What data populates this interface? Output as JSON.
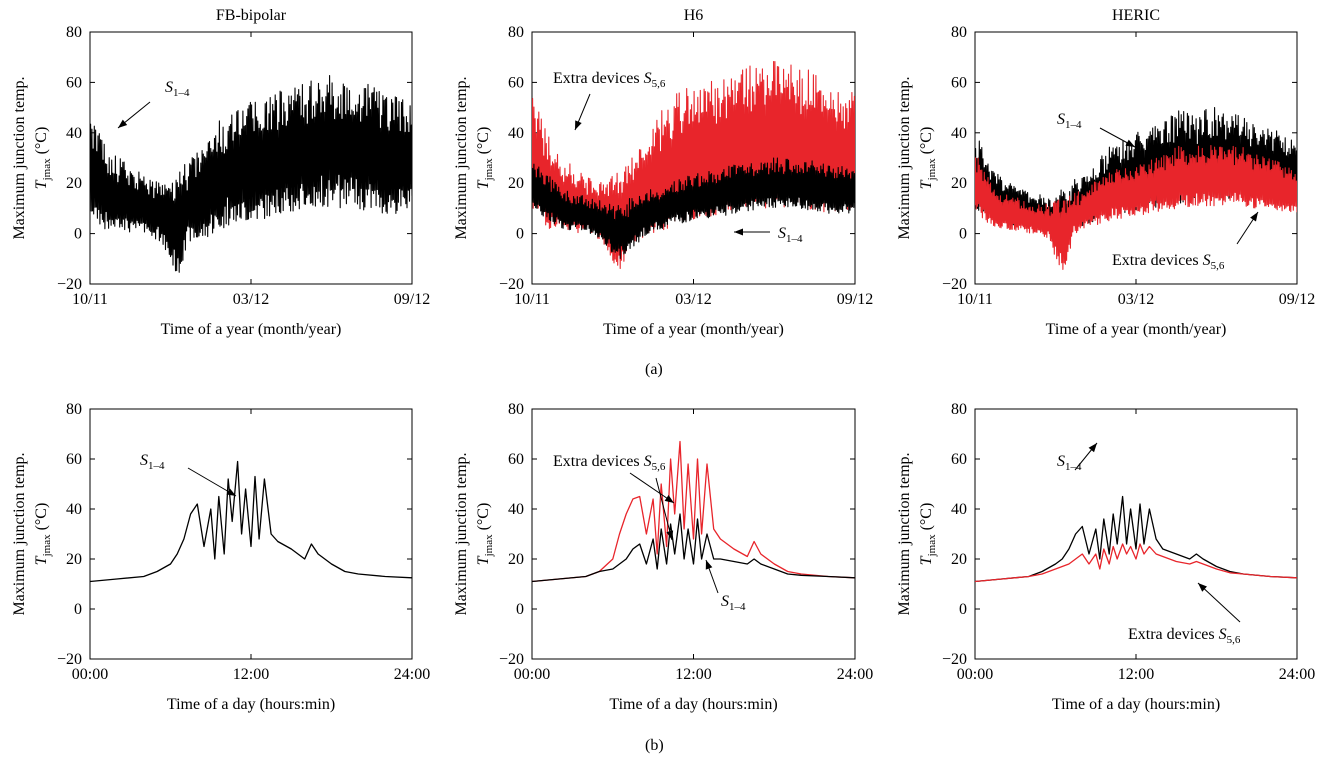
{
  "figure": {
    "label_a": "(a)",
    "label_b": "(b)"
  },
  "chart_data": [
    {
      "type": "line",
      "title": "FB-bipolar",
      "ylabel": "Maximum junction temp. T_jmax (°C)",
      "ylabel_line1": "Maximum junction temp.",
      "ylabel_line2": "T_jmax (°C)",
      "xlabel": "Time of a year (month/year)",
      "xticks": [
        "10/11",
        "03/12",
        "09/12"
      ],
      "ylim": [
        -20,
        80
      ],
      "yticks": [
        -20,
        0,
        20,
        40,
        60,
        80
      ],
      "series": [
        {
          "name": "S1–4",
          "color": "#000000",
          "style": "band",
          "x": [
            0,
            0.6,
            1,
            1.5,
            2,
            2.5,
            3,
            3.4,
            3.8,
            4.2,
            4.6,
            5,
            5.5,
            6,
            6.5,
            7,
            7.5,
            8,
            8.5,
            9,
            9.5,
            10,
            10.5,
            11
          ],
          "low": [
            8,
            0,
            2,
            0,
            0,
            -5,
            -17,
            -3,
            -3,
            0,
            2,
            4,
            5,
            6,
            8,
            8,
            10,
            10,
            10,
            10,
            9,
            8,
            8,
            8
          ],
          "high": [
            50,
            35,
            30,
            26,
            22,
            22,
            25,
            30,
            35,
            42,
            48,
            52,
            53,
            55,
            57,
            60,
            62,
            63,
            63,
            62,
            60,
            57,
            55,
            52
          ]
        }
      ],
      "annotations": [
        {
          "text": "S1–4",
          "sub": "1–4"
        }
      ]
    },
    {
      "type": "line",
      "title": "H6",
      "ylabel_line1": "Maximum junction temp.",
      "ylabel_line2": "T_jmax (°C)",
      "xlabel": "Time of a year (month/year)",
      "xticks": [
        "10/11",
        "03/12",
        "09/12"
      ],
      "ylim": [
        -20,
        80
      ],
      "yticks": [
        -20,
        0,
        20,
        40,
        60,
        80
      ],
      "series": [
        {
          "name": "Extra devices S5,6",
          "color": "#e8252b",
          "style": "band",
          "x": [
            0,
            0.6,
            1,
            1.5,
            2,
            2.5,
            3,
            3.4,
            3.8,
            4.2,
            4.6,
            5,
            5.5,
            6,
            6.5,
            7,
            7.5,
            8,
            8.5,
            9,
            9.5,
            10,
            10.5,
            11
          ],
          "low": [
            10,
            0,
            2,
            0,
            0,
            -5,
            -17,
            -3,
            -3,
            0,
            2,
            4,
            5,
            6,
            8,
            8,
            10,
            10,
            10,
            10,
            9,
            8,
            8,
            8
          ],
          "high": [
            55,
            38,
            30,
            26,
            22,
            22,
            25,
            32,
            38,
            45,
            52,
            57,
            58,
            60,
            62,
            65,
            68,
            70,
            70,
            68,
            65,
            62,
            60,
            57
          ]
        },
        {
          "name": "S1–4",
          "color": "#000000",
          "style": "band",
          "x": [
            0,
            1,
            2,
            3,
            4,
            5,
            6,
            7,
            8,
            9,
            10,
            11
          ],
          "low": [
            10,
            2,
            0,
            -10,
            0,
            4,
            6,
            8,
            10,
            10,
            8,
            8
          ],
          "high": [
            30,
            18,
            14,
            12,
            18,
            22,
            25,
            28,
            30,
            30,
            28,
            26
          ]
        }
      ],
      "annotations": [
        {
          "text": "Extra devices S5,6"
        },
        {
          "text": "S1–4"
        }
      ]
    },
    {
      "type": "line",
      "title": "HERIC",
      "ylabel_line1": "Maximum junction temp.",
      "ylabel_line2": "T_jmax (°C)",
      "xlabel": "Time of a year (month/year)",
      "xticks": [
        "10/11",
        "03/12",
        "09/12"
      ],
      "ylim": [
        -20,
        80
      ],
      "yticks": [
        -20,
        0,
        20,
        40,
        60,
        80
      ],
      "series": [
        {
          "name": "S1–4",
          "color": "#000000",
          "style": "band",
          "x": [
            0,
            0.6,
            1,
            1.5,
            2,
            2.5,
            3,
            3.4,
            3.8,
            4.2,
            4.6,
            5,
            5.5,
            6,
            6.5,
            7,
            7.5,
            8,
            8.5,
            9,
            9.5,
            10,
            10.5,
            11
          ],
          "low": [
            10,
            5,
            4,
            3,
            2,
            0,
            -10,
            2,
            3,
            5,
            7,
            8,
            9,
            10,
            11,
            12,
            13,
            14,
            14,
            14,
            13,
            12,
            12,
            12
          ],
          "high": [
            42,
            26,
            22,
            18,
            16,
            15,
            18,
            22,
            25,
            30,
            35,
            38,
            40,
            42,
            45,
            50,
            48,
            50,
            50,
            48,
            45,
            42,
            40,
            38
          ]
        },
        {
          "name": "Extra devices S5,6",
          "color": "#e8252b",
          "style": "band",
          "x": [
            0,
            0.6,
            1,
            1.5,
            2,
            2.5,
            3,
            3.4,
            3.8,
            4.2,
            4.6,
            5,
            5.5,
            6,
            6.5,
            7,
            7.5,
            8,
            8.5,
            9,
            9.5,
            10,
            10.5,
            11
          ],
          "low": [
            8,
            3,
            2,
            1,
            0,
            -2,
            -17,
            0,
            2,
            3,
            5,
            6,
            7,
            8,
            9,
            10,
            11,
            11,
            11,
            11,
            10,
            10,
            9,
            8
          ],
          "high": [
            32,
            20,
            16,
            14,
            12,
            12,
            14,
            16,
            18,
            22,
            25,
            27,
            28,
            30,
            32,
            35,
            35,
            36,
            36,
            35,
            33,
            30,
            28,
            26
          ]
        }
      ],
      "annotations": [
        {
          "text": "S1–4"
        },
        {
          "text": "Extra devices S5,6"
        }
      ]
    },
    {
      "type": "line",
      "title": "",
      "ylabel_line1": "Maximum junction temp.",
      "ylabel_line2": "T_jmax (°C)",
      "xlabel": "Time of a day (hours:min)",
      "xticks": [
        "00:00",
        "12:00",
        "24:00"
      ],
      "ylim": [
        -20,
        80
      ],
      "yticks": [
        -20,
        0,
        20,
        40,
        60,
        80
      ],
      "series": [
        {
          "name": "S1–4",
          "color": "#000000",
          "x": [
            0,
            2,
            4,
            5,
            6,
            6.5,
            7,
            7.5,
            8,
            8.5,
            9,
            9.3,
            9.6,
            10,
            10.3,
            10.6,
            11,
            11.3,
            11.6,
            12,
            12.3,
            12.6,
            13,
            13.5,
            14,
            15,
            16,
            16.5,
            17,
            18,
            19,
            20,
            22,
            24
          ],
          "y": [
            11,
            12,
            13,
            15,
            18,
            22,
            28,
            38,
            42,
            25,
            40,
            20,
            45,
            22,
            52,
            35,
            59,
            30,
            48,
            25,
            53,
            28,
            52,
            30,
            27,
            24,
            20,
            26,
            22,
            18,
            15,
            14,
            13,
            12.5
          ]
        }
      ],
      "annotations": [
        {
          "text": "S1–4"
        }
      ]
    },
    {
      "type": "line",
      "title": "",
      "ylabel_line1": "Maximum junction temp.",
      "ylabel_line2": "T_jmax (°C)",
      "xlabel": "Time of a day (hours:min)",
      "xticks": [
        "00:00",
        "12:00",
        "24:00"
      ],
      "ylim": [
        -20,
        80
      ],
      "yticks": [
        -20,
        0,
        20,
        40,
        60,
        80
      ],
      "series": [
        {
          "name": "Extra devices S5,6",
          "color": "#e8252b",
          "x": [
            0,
            2,
            4,
            5,
            6,
            6.5,
            7,
            7.5,
            8,
            8.5,
            9,
            9.3,
            9.6,
            10,
            10.3,
            10.6,
            11,
            11.3,
            11.6,
            12,
            12.3,
            12.6,
            13,
            13.5,
            14,
            15,
            16,
            16.5,
            17,
            18,
            19,
            20,
            22,
            24
          ],
          "y": [
            11,
            12,
            13,
            15,
            20,
            30,
            38,
            44,
            45,
            30,
            44,
            22,
            50,
            25,
            60,
            38,
            67,
            32,
            58,
            28,
            60,
            30,
            58,
            32,
            28,
            24,
            21,
            27,
            22,
            18,
            15,
            14,
            13,
            12.5
          ]
        },
        {
          "name": "S1–4",
          "color": "#000000",
          "x": [
            0,
            2,
            4,
            5,
            6,
            6.5,
            7,
            7.5,
            8,
            8.5,
            9,
            9.3,
            9.6,
            10,
            10.3,
            10.6,
            11,
            11.3,
            11.6,
            12,
            12.3,
            12.6,
            13,
            13.5,
            14,
            15,
            16,
            16.5,
            17,
            18,
            19,
            20,
            22,
            24
          ],
          "y": [
            11,
            12,
            13,
            15,
            16,
            18,
            20,
            24,
            26,
            18,
            28,
            16,
            32,
            18,
            34,
            22,
            38,
            20,
            32,
            18,
            36,
            20,
            30,
            20,
            20,
            19,
            18,
            20,
            18,
            16,
            14,
            13.5,
            13,
            12.5
          ]
        }
      ],
      "annotations": [
        {
          "text": "Extra devices S5,6"
        },
        {
          "text": "S1–4"
        }
      ]
    },
    {
      "type": "line",
      "title": "",
      "ylabel_line1": "Maximum junction temp.",
      "ylabel_line2": "T_jmax (°C)",
      "xlabel": "Time of a day (hours:min)",
      "xticks": [
        "00:00",
        "12:00",
        "24:00"
      ],
      "ylim": [
        -20,
        80
      ],
      "yticks": [
        -20,
        0,
        20,
        40,
        60,
        80
      ],
      "series": [
        {
          "name": "S1–4",
          "color": "#000000",
          "x": [
            0,
            2,
            4,
            5,
            6,
            6.5,
            7,
            7.5,
            8,
            8.5,
            9,
            9.3,
            9.6,
            10,
            10.3,
            10.6,
            11,
            11.3,
            11.6,
            12,
            12.3,
            12.6,
            13,
            13.5,
            14,
            15,
            16,
            16.5,
            17,
            18,
            19,
            20,
            22,
            24
          ],
          "y": [
            11,
            12,
            13,
            15,
            18,
            20,
            24,
            30,
            33,
            22,
            32,
            20,
            36,
            22,
            38,
            26,
            45,
            26,
            40,
            24,
            42,
            26,
            40,
            28,
            24,
            22,
            20,
            22,
            20,
            17,
            15,
            14,
            13,
            12.5
          ]
        },
        {
          "name": "Extra devices S5,6",
          "color": "#e8252b",
          "x": [
            0,
            2,
            4,
            5,
            6,
            6.5,
            7,
            7.5,
            8,
            8.5,
            9,
            9.3,
            9.6,
            10,
            10.3,
            10.6,
            11,
            11.3,
            11.6,
            12,
            12.3,
            12.6,
            13,
            13.5,
            14,
            15,
            16,
            16.5,
            17,
            18,
            19,
            20,
            22,
            24
          ],
          "y": [
            11,
            12,
            13,
            14,
            16,
            17,
            18,
            20,
            22,
            18,
            22,
            16,
            24,
            18,
            25,
            20,
            26,
            22,
            25,
            20,
            26,
            22,
            25,
            22,
            21,
            19,
            18,
            19,
            18,
            16,
            14.5,
            14,
            13,
            12.5
          ]
        }
      ],
      "annotations": [
        {
          "text": "S1–4"
        },
        {
          "text": "Extra devices S5,6"
        }
      ]
    }
  ]
}
